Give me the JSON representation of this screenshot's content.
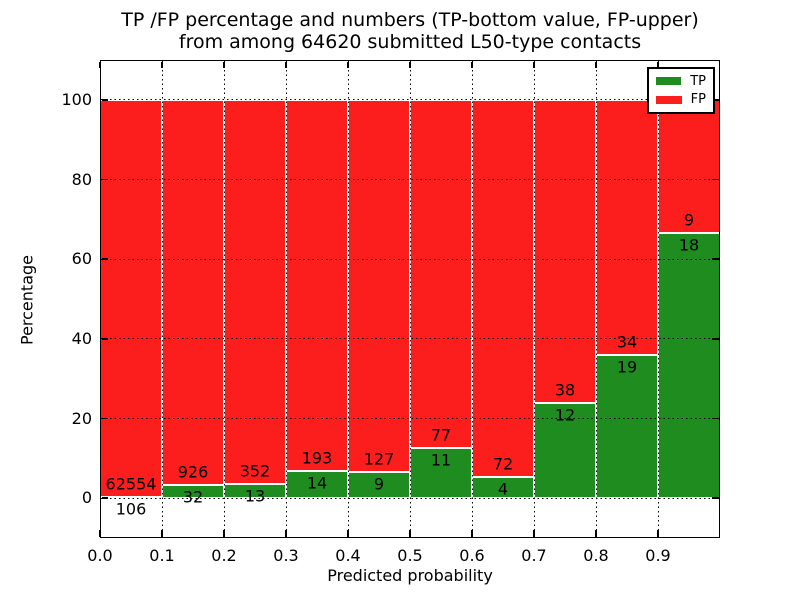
{
  "figure": {
    "title_line1": "TP /FP percentage and numbers (TP-bottom value, FP-upper)",
    "title_line2": "from among 64620 submitted L50-type contacts"
  },
  "chart_data": {
    "type": "bar",
    "stacked": true,
    "title": "TP /FP percentage and numbers (TP-bottom value, FP-upper) from among 64620 submitted L50-type contacts",
    "xlabel": "Predicted probability",
    "ylabel": "Percentage",
    "xlim": [
      0.0,
      1.0
    ],
    "ylim": [
      -10,
      110
    ],
    "xticks": [
      "0.0",
      "0.1",
      "0.2",
      "0.3",
      "0.4",
      "0.5",
      "0.6",
      "0.7",
      "0.8",
      "0.9"
    ],
    "yticks": [
      0,
      20,
      40,
      60,
      80,
      100
    ],
    "grid": "dotted",
    "bar_edge_color": "#ffffff",
    "bin_width": 0.1,
    "total_contacts": 64620,
    "legend": {
      "position": "upper right",
      "entries": [
        {
          "label": "TP",
          "color": "#1f8c1f"
        },
        {
          "label": "FP",
          "color": "#fc1d1d"
        }
      ]
    },
    "series": [
      {
        "name": "TP",
        "color": "#1f8c1f",
        "values": [
          106,
          32,
          13,
          14,
          9,
          11,
          4,
          12,
          19,
          18
        ]
      },
      {
        "name": "FP",
        "color": "#fc1d1d",
        "values": [
          62554,
          926,
          352,
          193,
          127,
          77,
          72,
          38,
          34,
          9
        ]
      }
    ],
    "bins": [
      {
        "x_start": 0.0,
        "tp": 106,
        "fp": 62554,
        "tp_percent": 0.17
      },
      {
        "x_start": 0.1,
        "tp": 32,
        "fp": 926,
        "tp_percent": 3.34
      },
      {
        "x_start": 0.2,
        "tp": 13,
        "fp": 352,
        "tp_percent": 3.56
      },
      {
        "x_start": 0.3,
        "tp": 14,
        "fp": 193,
        "tp_percent": 6.76
      },
      {
        "x_start": 0.4,
        "tp": 9,
        "fp": 127,
        "tp_percent": 6.62
      },
      {
        "x_start": 0.5,
        "tp": 11,
        "fp": 77,
        "tp_percent": 12.5
      },
      {
        "x_start": 0.6,
        "tp": 4,
        "fp": 72,
        "tp_percent": 5.26
      },
      {
        "x_start": 0.7,
        "tp": 12,
        "fp": 38,
        "tp_percent": 24.0
      },
      {
        "x_start": 0.8,
        "tp": 19,
        "fp": 34,
        "tp_percent": 35.85
      },
      {
        "x_start": 0.9,
        "tp": 18,
        "fp": 9,
        "tp_percent": 66.67
      }
    ]
  }
}
